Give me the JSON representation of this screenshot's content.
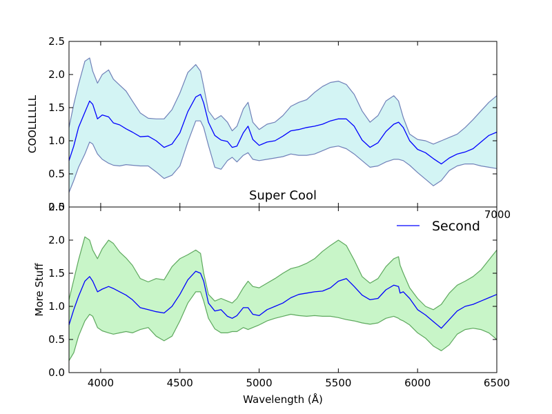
{
  "colors": {
    "top_mean": "#0000ff",
    "top_band_fill": "#d3f4f4",
    "top_band_edge": "#6f80b8",
    "bottom_mean": "#0000ff",
    "bottom_band_fill": "#c8f5c8",
    "bottom_band_edge": "#5da85d"
  },
  "chart_data": [
    {
      "type": "area",
      "title": "Super Cool",
      "xlabel": "",
      "ylabel": "COOLLLLLL",
      "xlim": [
        3800,
        6500
      ],
      "ylim": [
        0.0,
        2.5
      ],
      "grid": false,
      "y_ticks": [
        "2.5",
        "2.0",
        "1.5",
        "1.0",
        "0.5",
        "0.0"
      ],
      "overlapping_tick_label": "7000",
      "series": [
        {
          "role": "mean",
          "x": [
            3800,
            3830,
            3860,
            3900,
            3930,
            3950,
            3980,
            4010,
            4050,
            4080,
            4120,
            4160,
            4200,
            4250,
            4300,
            4350,
            4400,
            4450,
            4500,
            4550,
            4600,
            4630,
            4650,
            4680,
            4720,
            4760,
            4800,
            4830,
            4860,
            4900,
            4930,
            4960,
            5000,
            5050,
            5100,
            5150,
            5200,
            5250,
            5300,
            5350,
            5400,
            5450,
            5500,
            5550,
            5600,
            5650,
            5700,
            5750,
            5800,
            5850,
            5880,
            5910,
            5950,
            6000,
            6050,
            6100,
            6150,
            6200,
            6250,
            6300,
            6350,
            6400,
            6450,
            6500
          ],
          "y": [
            0.7,
            0.92,
            1.2,
            1.43,
            1.6,
            1.55,
            1.33,
            1.39,
            1.36,
            1.27,
            1.24,
            1.18,
            1.13,
            1.06,
            1.07,
            1.0,
            0.9,
            0.95,
            1.12,
            1.44,
            1.66,
            1.7,
            1.57,
            1.28,
            1.08,
            1.01,
            0.99,
            0.9,
            0.92,
            1.12,
            1.22,
            1.02,
            0.93,
            0.98,
            1.0,
            1.07,
            1.15,
            1.17,
            1.2,
            1.22,
            1.25,
            1.3,
            1.33,
            1.33,
            1.22,
            1.01,
            0.9,
            0.97,
            1.14,
            1.25,
            1.28,
            1.2,
            1.0,
            0.87,
            0.82,
            0.73,
            0.65,
            0.74,
            0.8,
            0.83,
            0.88,
            0.98,
            1.08,
            1.13
          ]
        },
        {
          "role": "upper",
          "x": [
            3800,
            3830,
            3860,
            3900,
            3930,
            3950,
            3980,
            4010,
            4050,
            4080,
            4120,
            4160,
            4200,
            4250,
            4300,
            4350,
            4400,
            4450,
            4500,
            4550,
            4600,
            4630,
            4650,
            4680,
            4720,
            4760,
            4800,
            4830,
            4860,
            4900,
            4930,
            4960,
            5000,
            5050,
            5100,
            5150,
            5200,
            5250,
            5300,
            5350,
            5400,
            5450,
            5500,
            5550,
            5600,
            5650,
            5700,
            5750,
            5800,
            5850,
            5880,
            5910,
            5950,
            6000,
            6050,
            6100,
            6150,
            6200,
            6250,
            6300,
            6350,
            6400,
            6450,
            6500
          ],
          "y": [
            1.2,
            1.55,
            1.85,
            2.2,
            2.25,
            2.05,
            1.87,
            2.0,
            2.07,
            1.93,
            1.84,
            1.75,
            1.6,
            1.42,
            1.34,
            1.33,
            1.33,
            1.47,
            1.72,
            2.03,
            2.15,
            2.05,
            1.82,
            1.45,
            1.32,
            1.38,
            1.28,
            1.15,
            1.22,
            1.48,
            1.58,
            1.28,
            1.17,
            1.25,
            1.28,
            1.38,
            1.52,
            1.58,
            1.62,
            1.73,
            1.82,
            1.88,
            1.9,
            1.85,
            1.7,
            1.45,
            1.28,
            1.38,
            1.6,
            1.68,
            1.6,
            1.35,
            1.1,
            1.02,
            1.0,
            0.95,
            1.0,
            1.05,
            1.1,
            1.2,
            1.32,
            1.45,
            1.58,
            1.68
          ]
        },
        {
          "role": "lower",
          "x": [
            3800,
            3830,
            3860,
            3900,
            3930,
            3950,
            3980,
            4010,
            4050,
            4080,
            4120,
            4160,
            4200,
            4250,
            4300,
            4350,
            4400,
            4450,
            4500,
            4550,
            4600,
            4630,
            4650,
            4680,
            4720,
            4760,
            4800,
            4830,
            4860,
            4900,
            4930,
            4960,
            5000,
            5050,
            5100,
            5150,
            5200,
            5250,
            5300,
            5350,
            5400,
            5450,
            5500,
            5550,
            5600,
            5650,
            5700,
            5750,
            5800,
            5850,
            5880,
            5910,
            5950,
            6000,
            6050,
            6100,
            6150,
            6200,
            6250,
            6300,
            6350,
            6400,
            6450,
            6500
          ],
          "y": [
            0.22,
            0.4,
            0.6,
            0.8,
            0.98,
            0.95,
            0.8,
            0.72,
            0.66,
            0.63,
            0.62,
            0.64,
            0.63,
            0.62,
            0.62,
            0.53,
            0.43,
            0.48,
            0.62,
            0.98,
            1.3,
            1.3,
            1.2,
            0.93,
            0.6,
            0.57,
            0.7,
            0.75,
            0.68,
            0.78,
            0.82,
            0.72,
            0.7,
            0.72,
            0.74,
            0.76,
            0.8,
            0.78,
            0.78,
            0.8,
            0.85,
            0.9,
            0.92,
            0.88,
            0.8,
            0.7,
            0.6,
            0.62,
            0.68,
            0.72,
            0.72,
            0.7,
            0.63,
            0.52,
            0.42,
            0.32,
            0.4,
            0.55,
            0.62,
            0.65,
            0.65,
            0.62,
            0.6,
            0.58
          ]
        }
      ]
    },
    {
      "type": "area",
      "title": "",
      "xlabel": "Wavelength (Å)",
      "ylabel": "More Stuff",
      "xlim": [
        3800,
        6500
      ],
      "ylim": [
        0.0,
        2.5
      ],
      "grid": false,
      "legend_position": "top-right",
      "x_ticks": [
        "4000",
        "4500",
        "5000",
        "5500",
        "6000",
        "6500"
      ],
      "y_ticks": [
        "2.5",
        "2.0",
        "1.5",
        "1.0",
        "0.5",
        "0.0"
      ],
      "series": [
        {
          "role": "mean",
          "name": "Second",
          "x": [
            3800,
            3830,
            3860,
            3900,
            3930,
            3950,
            3980,
            4010,
            4050,
            4080,
            4120,
            4160,
            4200,
            4250,
            4300,
            4350,
            4400,
            4450,
            4500,
            4550,
            4600,
            4630,
            4650,
            4680,
            4720,
            4760,
            4800,
            4830,
            4860,
            4900,
            4930,
            4960,
            5000,
            5050,
            5100,
            5150,
            5200,
            5250,
            5300,
            5350,
            5400,
            5450,
            5500,
            5550,
            5600,
            5650,
            5700,
            5750,
            5800,
            5850,
            5880,
            5890,
            5910,
            5950,
            6000,
            6050,
            6100,
            6150,
            6200,
            6250,
            6300,
            6350,
            6400,
            6450,
            6500
          ],
          "y": [
            0.72,
            0.95,
            1.15,
            1.38,
            1.45,
            1.38,
            1.22,
            1.26,
            1.3,
            1.27,
            1.22,
            1.17,
            1.1,
            0.98,
            0.95,
            0.92,
            0.9,
            1.0,
            1.18,
            1.4,
            1.53,
            1.5,
            1.38,
            1.05,
            0.93,
            0.95,
            0.85,
            0.82,
            0.86,
            0.98,
            0.98,
            0.88,
            0.86,
            0.95,
            1.0,
            1.05,
            1.13,
            1.18,
            1.2,
            1.22,
            1.23,
            1.28,
            1.38,
            1.42,
            1.3,
            1.17,
            1.1,
            1.12,
            1.25,
            1.32,
            1.3,
            1.2,
            1.22,
            1.12,
            0.95,
            0.87,
            0.77,
            0.67,
            0.8,
            0.93,
            1.0,
            1.03,
            1.08,
            1.13,
            1.18
          ]
        },
        {
          "role": "upper",
          "x": [
            3800,
            3830,
            3860,
            3900,
            3930,
            3950,
            3980,
            4010,
            4050,
            4080,
            4120,
            4160,
            4200,
            4250,
            4300,
            4350,
            4400,
            4450,
            4500,
            4550,
            4600,
            4630,
            4650,
            4680,
            4720,
            4760,
            4800,
            4830,
            4860,
            4900,
            4930,
            4960,
            5000,
            5050,
            5100,
            5150,
            5200,
            5250,
            5300,
            5350,
            5400,
            5450,
            5500,
            5550,
            5600,
            5650,
            5700,
            5750,
            5800,
            5850,
            5880,
            5890,
            5910,
            5950,
            6000,
            6050,
            6100,
            6150,
            6200,
            6250,
            6300,
            6350,
            6400,
            6450,
            6500
          ],
          "y": [
            1.1,
            1.4,
            1.7,
            2.05,
            2.0,
            1.85,
            1.72,
            1.87,
            2.0,
            1.95,
            1.82,
            1.73,
            1.62,
            1.42,
            1.37,
            1.42,
            1.4,
            1.6,
            1.72,
            1.78,
            1.85,
            1.8,
            1.5,
            1.18,
            1.08,
            1.12,
            1.08,
            1.05,
            1.12,
            1.28,
            1.38,
            1.3,
            1.28,
            1.35,
            1.42,
            1.5,
            1.57,
            1.6,
            1.65,
            1.72,
            1.83,
            1.92,
            2.0,
            1.92,
            1.7,
            1.45,
            1.35,
            1.42,
            1.6,
            1.72,
            1.75,
            1.62,
            1.5,
            1.28,
            1.12,
            1.0,
            0.95,
            1.03,
            1.2,
            1.32,
            1.38,
            1.45,
            1.55,
            1.7,
            1.85
          ]
        },
        {
          "role": "lower",
          "x": [
            3800,
            3830,
            3860,
            3900,
            3930,
            3950,
            3980,
            4010,
            4050,
            4080,
            4120,
            4160,
            4200,
            4250,
            4300,
            4350,
            4400,
            4450,
            4500,
            4550,
            4600,
            4630,
            4650,
            4680,
            4720,
            4760,
            4800,
            4830,
            4860,
            4900,
            4930,
            4960,
            5000,
            5050,
            5100,
            5150,
            5200,
            5250,
            5300,
            5350,
            5400,
            5450,
            5500,
            5550,
            5600,
            5650,
            5700,
            5750,
            5800,
            5850,
            5880,
            5890,
            5910,
            5950,
            6000,
            6050,
            6100,
            6150,
            6200,
            6250,
            6300,
            6350,
            6400,
            6450,
            6500
          ],
          "y": [
            0.18,
            0.3,
            0.55,
            0.78,
            0.88,
            0.85,
            0.68,
            0.63,
            0.6,
            0.58,
            0.6,
            0.62,
            0.6,
            0.65,
            0.68,
            0.55,
            0.48,
            0.55,
            0.78,
            1.05,
            1.22,
            1.22,
            1.08,
            0.82,
            0.66,
            0.6,
            0.6,
            0.62,
            0.62,
            0.68,
            0.65,
            0.68,
            0.72,
            0.78,
            0.82,
            0.85,
            0.88,
            0.86,
            0.85,
            0.86,
            0.85,
            0.85,
            0.83,
            0.8,
            0.78,
            0.75,
            0.73,
            0.75,
            0.82,
            0.85,
            0.82,
            0.8,
            0.78,
            0.72,
            0.6,
            0.52,
            0.4,
            0.33,
            0.42,
            0.58,
            0.65,
            0.67,
            0.65,
            0.6,
            0.5
          ]
        }
      ]
    }
  ]
}
